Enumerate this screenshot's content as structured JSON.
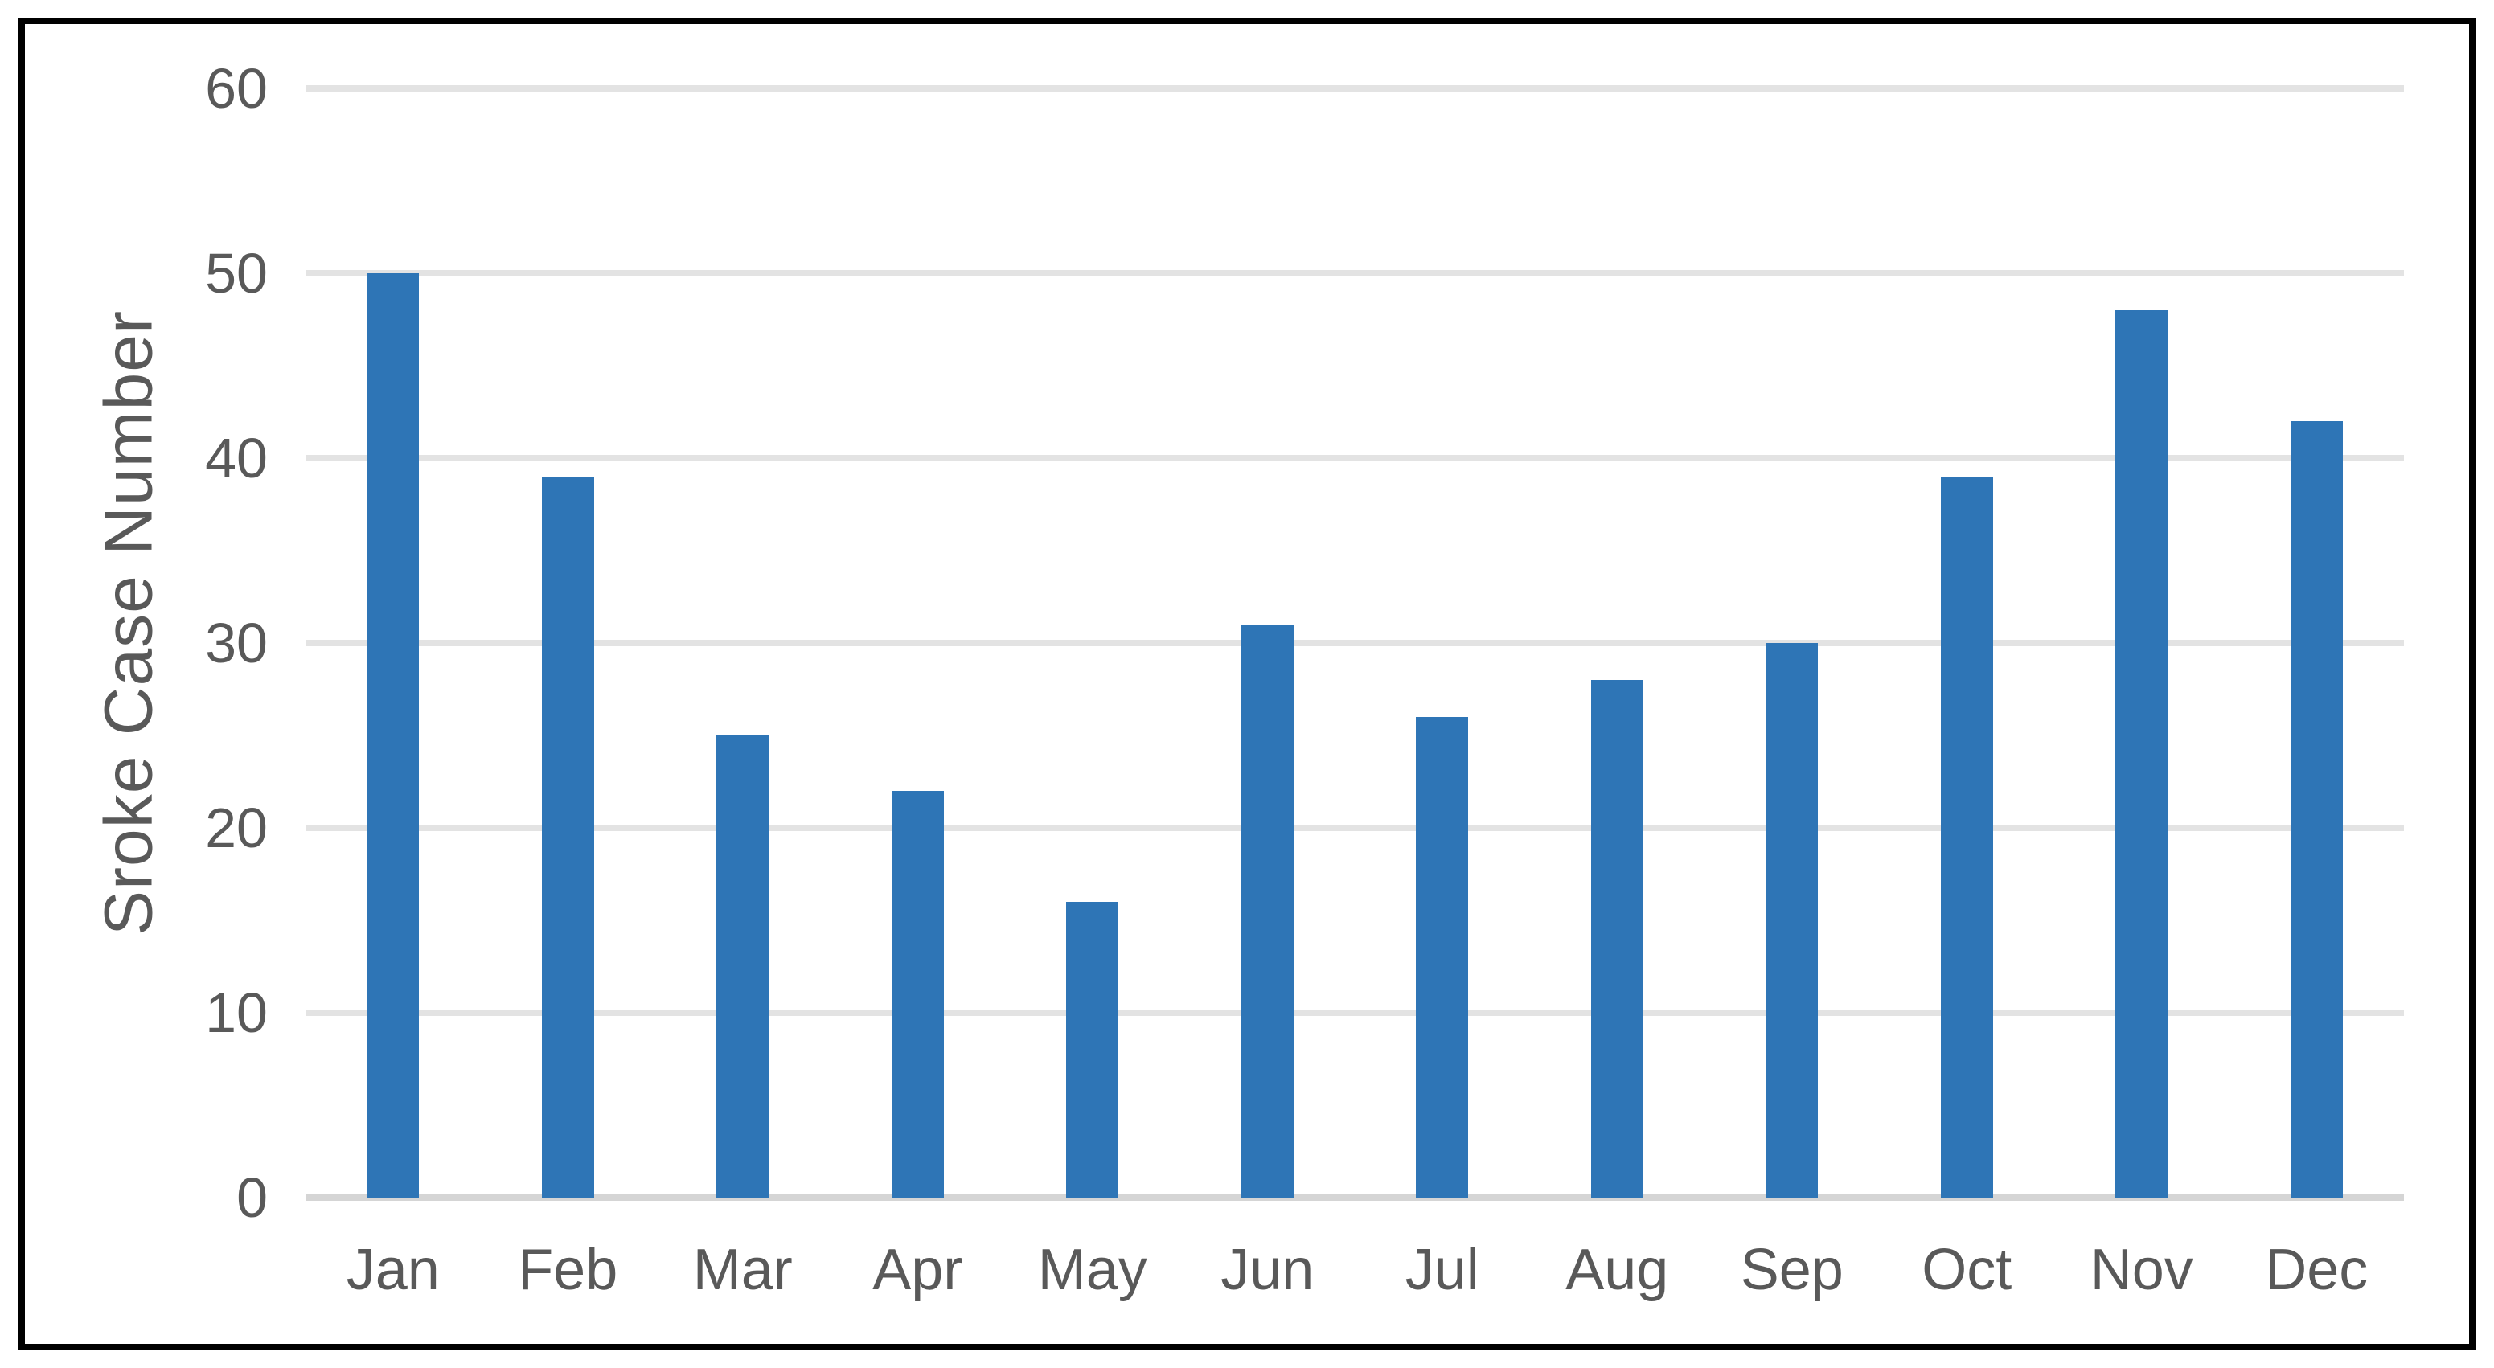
{
  "chart_data": {
    "type": "bar",
    "title": "",
    "categories": [
      "Jan",
      "Feb",
      "Mar",
      "Apr",
      "May",
      "Jun",
      "Jul",
      "Aug",
      "Sep",
      "Oct",
      "Nov",
      "Dec"
    ],
    "values": [
      50,
      39,
      25,
      22,
      16,
      31,
      26,
      28,
      30,
      39,
      48,
      42
    ],
    "xlabel": "",
    "ylabel": "Sroke Case Number",
    "ylim": [
      0,
      60
    ],
    "yticks": [
      0,
      10,
      20,
      30,
      40,
      50,
      60
    ],
    "grid": true,
    "legend": "none",
    "colors": {
      "bar": "#2E75B6",
      "gridline": "#E3E3E3",
      "axis_line": "#D5D5D5",
      "tick_text": "#595959",
      "frame_border": "#000000",
      "background": "#FFFFFF"
    }
  }
}
